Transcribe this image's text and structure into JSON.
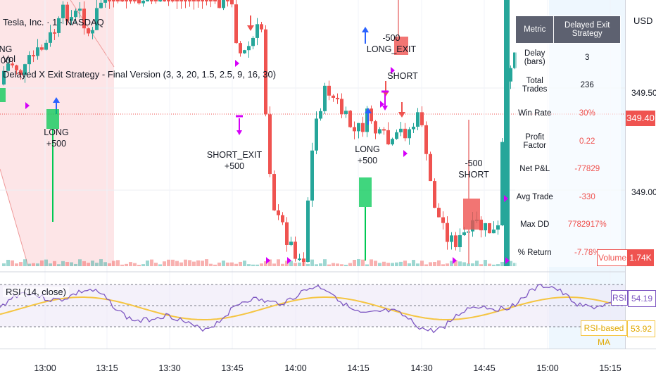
{
  "header": {
    "symbol_title": "Tesla, Inc. · 1 · NASDAQ",
    "vol_label": "Vol",
    "strategy_label": "Delayed X Exit Strategy - Final Version (3, 3, 20, 1.5, 2.5, 9, 16, 30)"
  },
  "price_scale": {
    "currency": "USD",
    "labels": [
      "349.50",
      "349.00"
    ],
    "current_price": "349.40"
  },
  "stats_table": {
    "headers": [
      "Metric",
      "Delayed Exit Strategy"
    ],
    "rows": [
      {
        "metric": "Delay (bars)",
        "value": "3",
        "negative": false
      },
      {
        "metric": "Total Trades",
        "value": "236",
        "negative": false
      },
      {
        "metric": "Win Rate",
        "value": "30%",
        "negative": true
      },
      {
        "metric": "Profit Factor",
        "value": "0.22",
        "negative": true
      },
      {
        "metric": "Net P&L",
        "value": "-77829",
        "negative": true
      },
      {
        "metric": "Avg Trade",
        "value": "-330",
        "negative": true
      },
      {
        "metric": "Max DD",
        "value": "7782917%",
        "negative": true
      },
      {
        "metric": "% Return",
        "value": "-7.78%",
        "negative": true
      }
    ]
  },
  "volume_badge": {
    "label": "Volume",
    "value": "1.74K"
  },
  "rsi": {
    "legend": "RSI (14, close)",
    "badge_label": "RSI",
    "badge_value": "54.19",
    "ma_label": "RSI-based MA",
    "ma_value": "53.92"
  },
  "time_axis": [
    "13:00",
    "13:15",
    "13:30",
    "13:45",
    "14:00",
    "14:15",
    "14:30",
    "14:45",
    "15:00",
    "15:15"
  ],
  "trade_labels": [
    {
      "text": "LONG\n+500"
    },
    {
      "text": "SHORT_EXIT\n+500"
    },
    {
      "text": "LONG\n+500"
    },
    {
      "text": "-500\nLONG_EXIT"
    },
    {
      "text": "SHORT"
    },
    {
      "text": "-500\nSHORT"
    },
    {
      "text": "SHORT"
    },
    {
      "text": "NG\n00"
    }
  ],
  "colors": {
    "up": "#26a69a",
    "down": "#ef5350",
    "rsi_line": "#7e57c2",
    "rsi_ma": "#f5c542",
    "long_signal": "#00c853",
    "short_signal": "#ef5350",
    "exit_marker": "#d500f9"
  }
}
